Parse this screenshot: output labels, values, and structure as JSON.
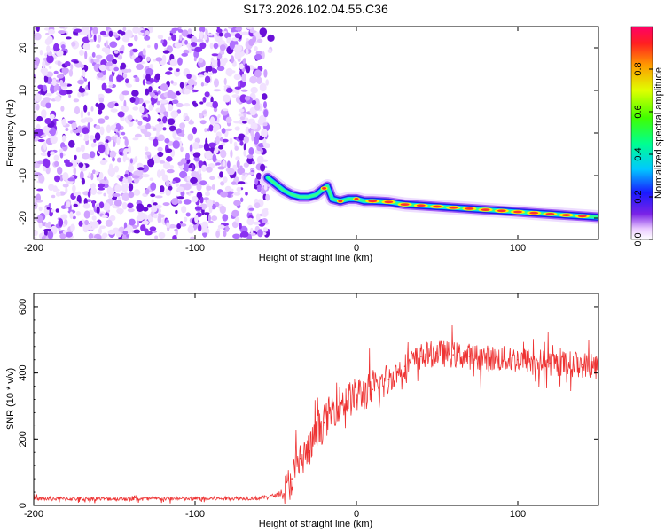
{
  "title": "S173.2026.102.04.55.C36",
  "chart_data": [
    {
      "type": "heatmap",
      "name": "spectrogram",
      "xlabel": "Height of straight line (km)",
      "ylabel": "Frequency (Hz)",
      "xlim": [
        -200,
        150
      ],
      "ylim": [
        -25,
        25
      ],
      "xticks": [
        -200,
        -100,
        0,
        100
      ],
      "yticks": [
        -20,
        -10,
        0,
        10,
        20
      ],
      "noise_region_x": [
        -200,
        -55
      ],
      "signal_track": {
        "x": [
          -55,
          -50,
          -45,
          -40,
          -35,
          -30,
          -25,
          -20,
          -18,
          -15,
          -10,
          -5,
          0,
          5,
          10,
          20,
          30,
          50,
          70,
          90,
          110,
          130,
          150
        ],
        "frequency": [
          -10.5,
          -12,
          -13.5,
          -14.5,
          -15,
          -15,
          -14.5,
          -13,
          -12.5,
          -15.5,
          -16,
          -15.5,
          -15.5,
          -16,
          -16,
          -16.2,
          -16.8,
          -17.3,
          -17.8,
          -18.3,
          -18.8,
          -19.3,
          -19.8
        ]
      },
      "colorbar": {
        "label": "Normalized spectral amplitude",
        "range": [
          0,
          1
        ],
        "ticks": [
          "0.0",
          "0.2",
          "0.4",
          "0.6",
          "0.8"
        ],
        "ticks_values": [
          0,
          0.2,
          0.4,
          0.6,
          0.8
        ]
      }
    },
    {
      "type": "line",
      "name": "snr",
      "xlabel": "Height of straight line (km)",
      "ylabel": "SNR (10 * v/v)",
      "xlim": [
        -200,
        150
      ],
      "ylim": [
        0,
        640
      ],
      "xticks": [
        -200,
        -100,
        0,
        100
      ],
      "yticks": [
        0,
        200,
        400,
        600
      ],
      "color": "#ee3333",
      "series": [
        {
          "name": "SNR",
          "x": [
            -200,
            -150,
            -100,
            -60,
            -45,
            -40,
            -35,
            -30,
            -25,
            -20,
            -15,
            -10,
            -5,
            0,
            10,
            20,
            30,
            40,
            50,
            60,
            70,
            80,
            100,
            120,
            140,
            150
          ],
          "values": [
            20,
            20,
            20,
            22,
            35,
            80,
            140,
            160,
            210,
            250,
            290,
            310,
            320,
            330,
            350,
            380,
            420,
            450,
            460,
            455,
            450,
            445,
            440,
            430,
            425,
            420
          ]
        }
      ]
    }
  ]
}
